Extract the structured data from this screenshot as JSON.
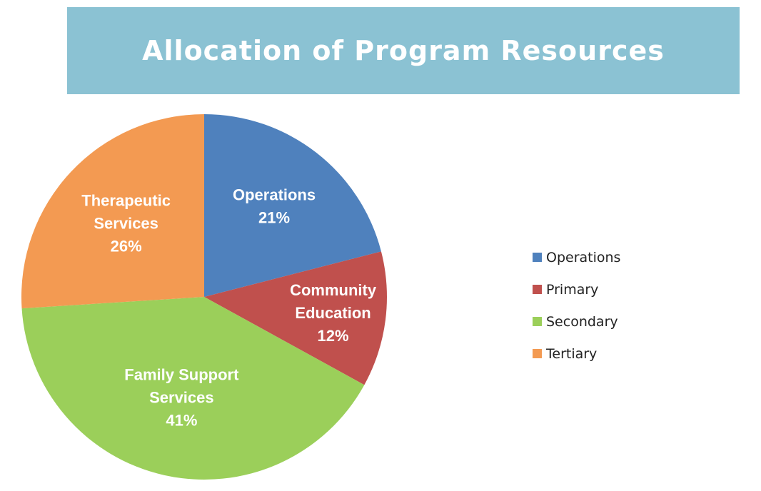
{
  "header": {
    "title": "Allocation of Program Resources"
  },
  "chart_data": {
    "type": "pie",
    "title": "Allocation of Program Resources",
    "slices": [
      {
        "name": "Operations",
        "label_lines": [
          "Operations",
          "21%"
        ],
        "value": 21,
        "color": "#4f81bd"
      },
      {
        "name": "Primary",
        "label_lines": [
          "Community",
          "Education",
          "12%"
        ],
        "value": 12,
        "color": "#c0504d"
      },
      {
        "name": "Secondary",
        "label_lines": [
          "Family Support",
          "Services",
          "41%"
        ],
        "value": 41,
        "color": "#9bcf5a"
      },
      {
        "name": "Tertiary",
        "label_lines": [
          "Therapeutic",
          "Services",
          "26%"
        ],
        "value": 26,
        "color": "#f39a52"
      }
    ],
    "legend": {
      "position": "right",
      "entries": [
        "Operations",
        "Primary",
        "Secondary",
        "Tertiary"
      ]
    },
    "start_at": "12 o'clock",
    "direction": "clockwise"
  }
}
